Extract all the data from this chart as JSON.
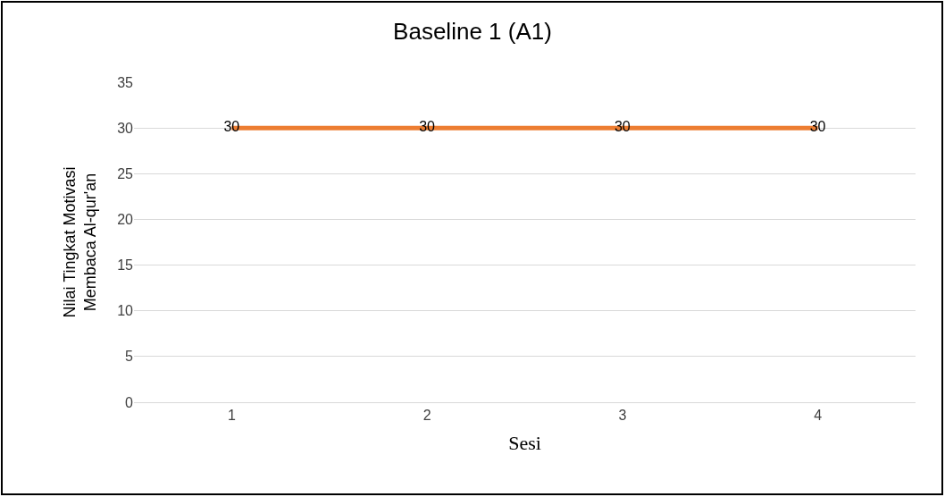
{
  "chart_data": {
    "type": "line",
    "title": "Baseline 1 (A1)",
    "xlabel": "Sesi",
    "ylabel": "Nilai Tingkat Motivasi Membaca Al-qur'an",
    "categories": [
      "1",
      "2",
      "3",
      "4"
    ],
    "series": [
      {
        "color": "#ed7d31",
        "values": [
          30,
          30,
          30,
          30
        ]
      }
    ],
    "ylim": [
      0,
      35
    ],
    "yticks": [
      0,
      5,
      10,
      15,
      20,
      25,
      30,
      35
    ],
    "grid": "y",
    "data_labels": true
  }
}
